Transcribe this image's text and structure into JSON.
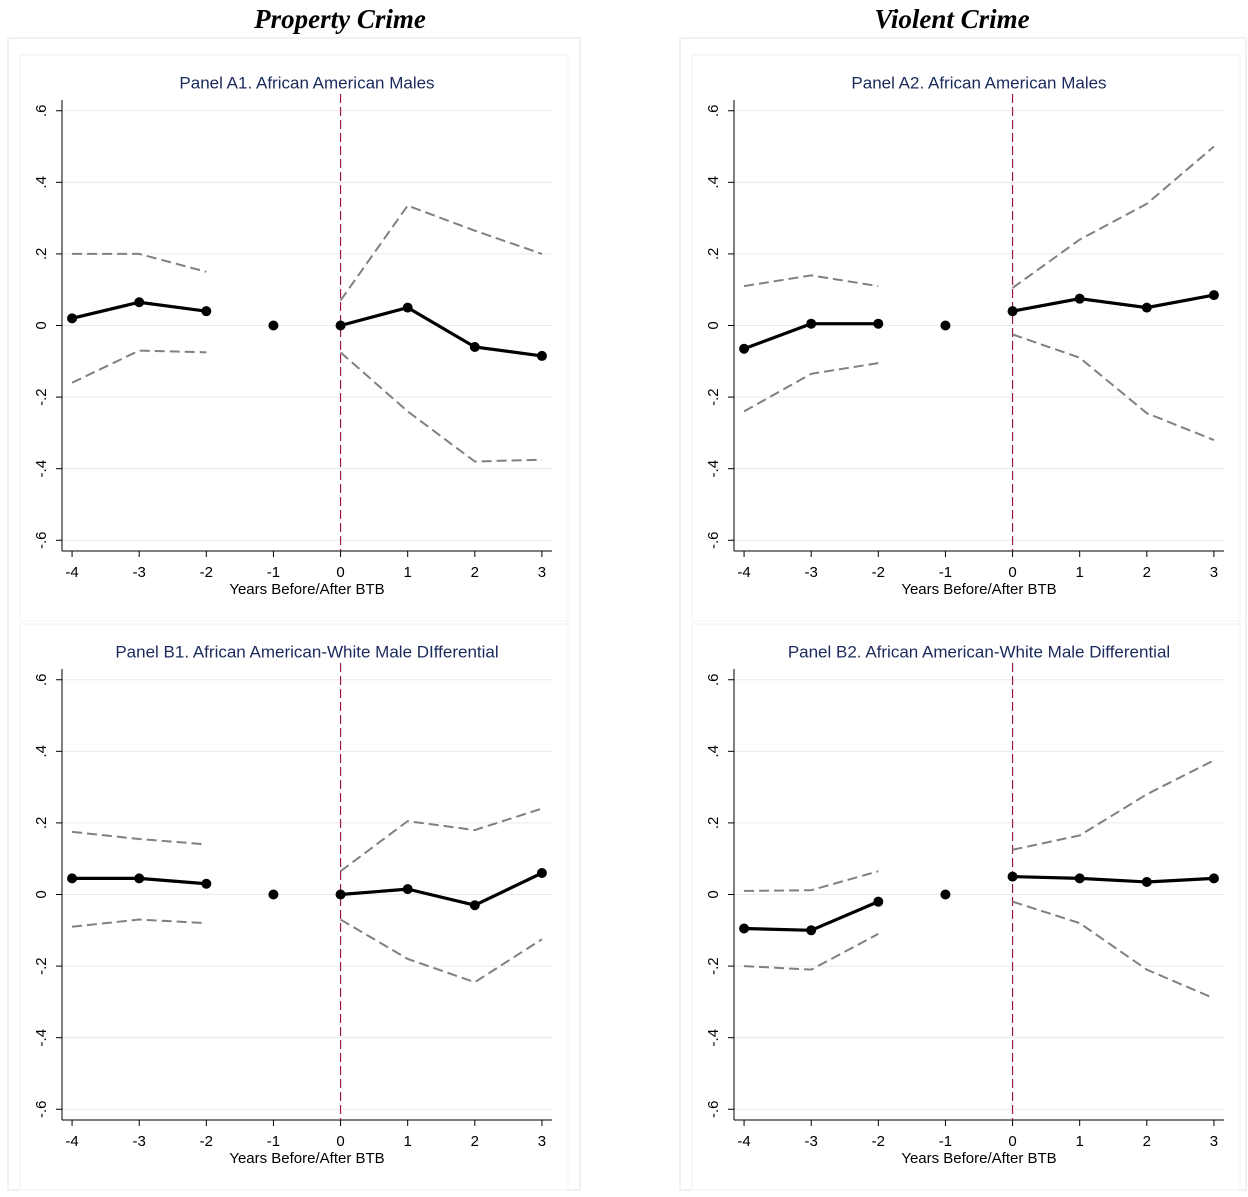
{
  "column_titles": [
    "Property Crime",
    "Violent Crime"
  ],
  "chart_data": [
    {
      "type": "line",
      "title": "Panel A1. African American Males",
      "x_label": "Years Before/After BTB",
      "x": [
        -4,
        -3,
        -2,
        -1,
        0,
        1,
        2,
        3
      ],
      "series": [
        {
          "color": "#000000",
          "style": "solid",
          "markers": true,
          "values": [
            0.02,
            0.065,
            0.04,
            null,
            0,
            0.05,
            -0.06,
            -0.085
          ]
        },
        {
          "color": "#808080",
          "style": "dashed",
          "markers": false,
          "values": [
            0.2,
            0.2,
            0.15,
            null,
            0.07,
            0.335,
            0.265,
            0.2
          ]
        },
        {
          "color": "#808080",
          "style": "dashed",
          "markers": false,
          "values": [
            -0.16,
            -0.07,
            -0.075,
            null,
            -0.075,
            -0.24,
            -0.38,
            -0.375
          ]
        }
      ],
      "baseline_point": {
        "x": -1,
        "y": 0
      },
      "vline": 0,
      "vline_color": "#9b1b4a",
      "xlim": [
        -4.15,
        3.15
      ],
      "xticks": [
        -4,
        -3,
        -2,
        -1,
        0,
        1,
        2,
        3
      ],
      "ylim": [
        -0.63,
        0.63
      ],
      "yticks": [
        {
          "value": -0.6,
          "label": "-.6"
        },
        {
          "value": -0.4,
          "label": "-.4"
        },
        {
          "value": -0.2,
          "label": "-.2"
        },
        0,
        {
          "value": 0.2,
          "label": ".2"
        },
        {
          "value": 0.4,
          "label": ".4"
        },
        {
          "value": 0.6,
          "label": ".6"
        }
      ],
      "grid": true
    },
    {
      "type": "line",
      "title": "Panel A2. African American Males",
      "x_label": "Years Before/After BTB",
      "x": [
        -4,
        -3,
        -2,
        -1,
        0,
        1,
        2,
        3
      ],
      "series": [
        {
          "color": "#000000",
          "style": "solid",
          "markers": true,
          "values": [
            -0.065,
            0.005,
            0.005,
            null,
            0.04,
            0.075,
            0.05,
            0.085
          ]
        },
        {
          "color": "#808080",
          "style": "dashed",
          "markers": false,
          "values": [
            0.11,
            0.14,
            0.11,
            null,
            0.105,
            0.24,
            0.34,
            0.5
          ]
        },
        {
          "color": "#808080",
          "style": "dashed",
          "markers": false,
          "values": [
            -0.24,
            -0.135,
            -0.105,
            null,
            -0.025,
            -0.09,
            -0.245,
            -0.32
          ]
        }
      ],
      "baseline_point": {
        "x": -1,
        "y": 0
      },
      "vline": 0,
      "vline_color": "#9b1b4a",
      "xlim": [
        -4.15,
        3.15
      ],
      "xticks": [
        -4,
        -3,
        -2,
        -1,
        0,
        1,
        2,
        3
      ],
      "ylim": [
        -0.63,
        0.63
      ],
      "yticks": [
        {
          "value": -0.6,
          "label": "-.6"
        },
        {
          "value": -0.4,
          "label": "-.4"
        },
        {
          "value": -0.2,
          "label": "-.2"
        },
        0,
        {
          "value": 0.2,
          "label": ".2"
        },
        {
          "value": 0.4,
          "label": ".4"
        },
        {
          "value": 0.6,
          "label": ".6"
        }
      ],
      "grid": true
    },
    {
      "type": "line",
      "title": "Panel B1. African American-White Male DIfferential",
      "x_label": "Years Before/After BTB",
      "x": [
        -4,
        -3,
        -2,
        -1,
        0,
        1,
        2,
        3
      ],
      "series": [
        {
          "color": "#000000",
          "style": "solid",
          "markers": true,
          "values": [
            0.045,
            0.045,
            0.03,
            null,
            0,
            0.015,
            -0.03,
            0.06
          ]
        },
        {
          "color": "#808080",
          "style": "dashed",
          "markers": false,
          "values": [
            0.175,
            0.155,
            0.14,
            null,
            0.065,
            0.205,
            0.18,
            0.24
          ]
        },
        {
          "color": "#808080",
          "style": "dashed",
          "markers": false,
          "values": [
            -0.09,
            -0.07,
            -0.08,
            null,
            -0.07,
            -0.18,
            -0.245,
            -0.125
          ]
        }
      ],
      "baseline_point": {
        "x": -1,
        "y": 0
      },
      "vline": 0,
      "vline_color": "#9b1b4a",
      "xlim": [
        -4.15,
        3.15
      ],
      "xticks": [
        -4,
        -3,
        -2,
        -1,
        0,
        1,
        2,
        3
      ],
      "ylim": [
        -0.63,
        0.63
      ],
      "yticks": [
        {
          "value": -0.6,
          "label": "-.6"
        },
        {
          "value": -0.4,
          "label": "-.4"
        },
        {
          "value": -0.2,
          "label": "-.2"
        },
        0,
        {
          "value": 0.2,
          "label": ".2"
        },
        {
          "value": 0.4,
          "label": ".4"
        },
        {
          "value": 0.6,
          "label": ".6"
        }
      ],
      "grid": true
    },
    {
      "type": "line",
      "title": "Panel B2. African American-White Male Differential",
      "x_label": "Years Before/After BTB",
      "x": [
        -4,
        -3,
        -2,
        -1,
        0,
        1,
        2,
        3
      ],
      "series": [
        {
          "color": "#000000",
          "style": "solid",
          "markers": true,
          "values": [
            -0.095,
            -0.1,
            -0.02,
            null,
            0.05,
            0.045,
            0.035,
            0.045
          ]
        },
        {
          "color": "#808080",
          "style": "dashed",
          "markers": false,
          "values": [
            0.01,
            0.012,
            0.065,
            null,
            0.125,
            0.165,
            0.28,
            0.375
          ]
        },
        {
          "color": "#808080",
          "style": "dashed",
          "markers": false,
          "values": [
            -0.2,
            -0.21,
            -0.11,
            null,
            -0.02,
            -0.08,
            -0.21,
            -0.29
          ]
        }
      ],
      "baseline_point": {
        "x": -1,
        "y": 0
      },
      "vline": 0,
      "vline_color": "#9b1b4a",
      "xlim": [
        -4.15,
        3.15
      ],
      "xticks": [
        -4,
        -3,
        -2,
        -1,
        0,
        1,
        2,
        3
      ],
      "ylim": [
        -0.63,
        0.63
      ],
      "yticks": [
        {
          "value": -0.6,
          "label": "-.6"
        },
        {
          "value": -0.4,
          "label": "-.4"
        },
        {
          "value": -0.2,
          "label": "-.2"
        },
        0,
        {
          "value": 0.2,
          "label": ".2"
        },
        {
          "value": 0.4,
          "label": ".4"
        },
        {
          "value": 0.6,
          "label": ".6"
        }
      ],
      "grid": true
    }
  ]
}
